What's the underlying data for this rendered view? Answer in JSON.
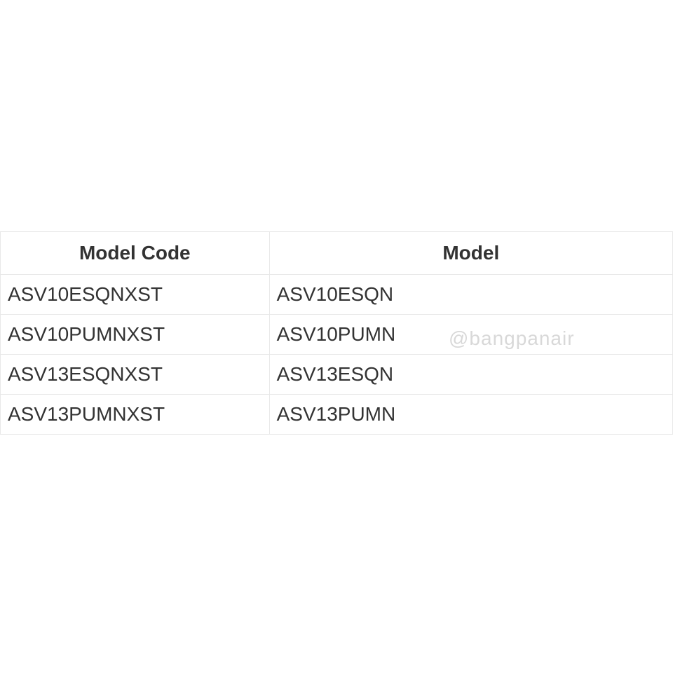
{
  "table": {
    "columns": [
      "Model Code",
      "Model"
    ],
    "rows": [
      [
        "ASV10ESQNXST",
        "ASV10ESQN"
      ],
      [
        "ASV10PUMNXST",
        "ASV10PUMN"
      ],
      [
        "ASV13ESQNXST",
        "ASV13ESQN"
      ],
      [
        "ASV13PUMNXST",
        "ASV13PUMN"
      ]
    ],
    "header_color": "#333333",
    "cell_color": "#333333",
    "border_color": "#e8e8e8",
    "background": "#ffffff",
    "header_fontsize": 28,
    "cell_fontsize": 28,
    "col_widths": [
      "40%",
      "60%"
    ]
  },
  "watermark": {
    "text": "@bangpanair",
    "color": "#d8d8d8",
    "fontsize": 28
  }
}
